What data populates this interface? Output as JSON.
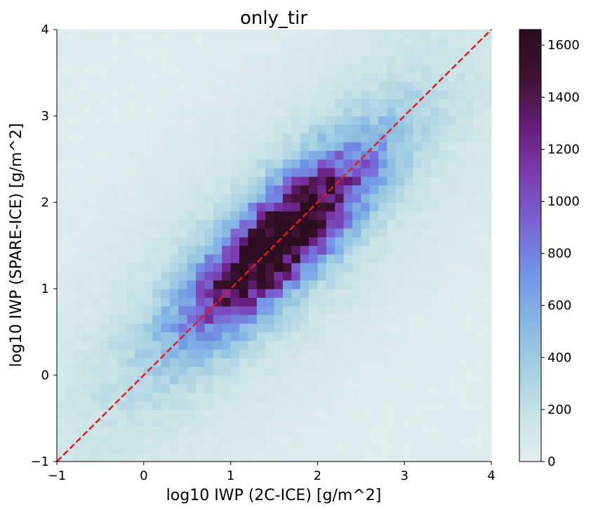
{
  "chart_data": {
    "type": "heatmap",
    "title": "only_tir",
    "xlabel": "log10 IWP (2C-ICE) [g/m^2]",
    "ylabel": "log10 IWP (SPARE-ICE) [g/m^2]",
    "xlim": [
      -1,
      4
    ],
    "ylim": [
      -1,
      4
    ],
    "xticks": [
      -1,
      0,
      1,
      2,
      3,
      4
    ],
    "xtick_labels": [
      "−1",
      "0",
      "1",
      "2",
      "3",
      "4"
    ],
    "yticks": [
      -1,
      0,
      1,
      2,
      3,
      4
    ],
    "ytick_labels": [
      "−1",
      "0",
      "1",
      "2",
      "3",
      "4"
    ],
    "bins": 50,
    "distribution": {
      "peak_center": [
        1.55,
        1.55
      ],
      "peak_count": 1660,
      "spread_along_diagonal": 0.95,
      "spread_across_diagonal": 0.3,
      "background_count": 25
    },
    "colorbar": {
      "range": [
        0,
        1660
      ],
      "ticks": [
        0,
        200,
        400,
        600,
        800,
        1000,
        1200,
        1400,
        1600
      ],
      "tick_labels": [
        "0",
        "200",
        "400",
        "600",
        "800",
        "1000",
        "1200",
        "1400",
        "1600"
      ],
      "colormap": [
        "#e3eeee",
        "#c7e2e6",
        "#a2cde2",
        "#84b5e3",
        "#7191e6",
        "#7b62d2",
        "#7b3cae",
        "#651d78",
        "#3e1230",
        "#2b0c21"
      ]
    },
    "reference_line": {
      "x": [
        -1,
        4
      ],
      "y": [
        -1,
        4
      ],
      "style": "dashed",
      "color": "#e8191a"
    },
    "grid": false,
    "legend": "none"
  }
}
